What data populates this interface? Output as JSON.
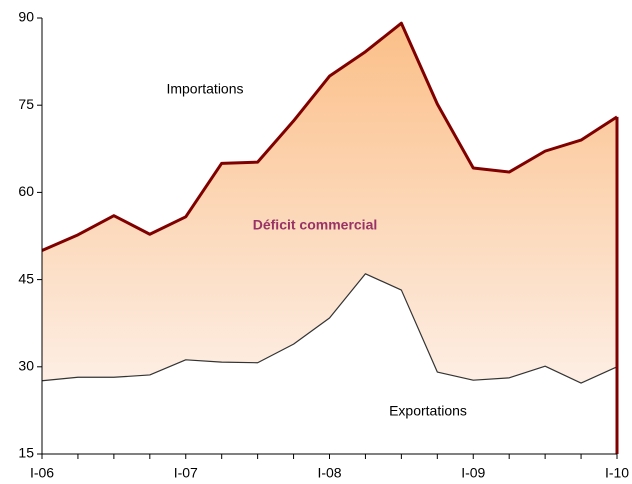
{
  "chart_data": {
    "type": "area-between",
    "categories": [
      "I-06",
      null,
      null,
      null,
      "I-07",
      null,
      null,
      null,
      "I-08",
      null,
      null,
      null,
      "I-09",
      null,
      null,
      null,
      "I-10"
    ],
    "series": [
      {
        "name": "Importations",
        "color": "#800000",
        "values": [
          50,
          52.7,
          56,
          52.8,
          55.8,
          65,
          65.2,
          72.3,
          80,
          84.2,
          89.1,
          75.2,
          64.2,
          63.5,
          67.1,
          69,
          73
        ]
      },
      {
        "name": "Exportations",
        "color": "#333333",
        "values": [
          27.6,
          28.2,
          28.2,
          28.6,
          31.2,
          30.8,
          30.7,
          33.9,
          38.4,
          46,
          43.2,
          29.1,
          27.7,
          28.1,
          30.1,
          27.2,
          30
        ]
      }
    ],
    "annotation": "Déficit commercial",
    "fill_top": "#fbbf88",
    "fill_bottom": "#fdeee4",
    "ylim": [
      15,
      90
    ],
    "yticks": [
      15,
      30,
      45,
      60,
      75,
      90
    ]
  }
}
